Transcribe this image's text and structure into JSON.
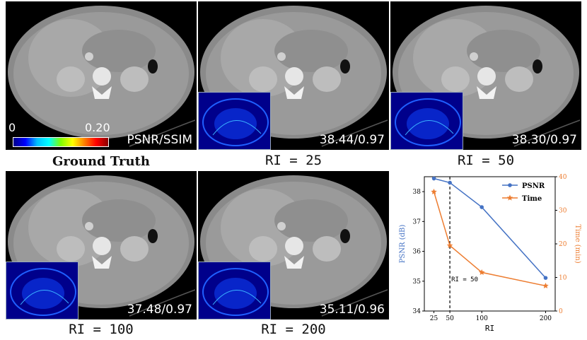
{
  "panels": [
    {
      "caption": "Ground Truth",
      "metric": "PSNR/SSIM",
      "inset": false,
      "colorbar": {
        "min": "0",
        "max": "0.20"
      }
    },
    {
      "caption": "RI = 25",
      "metric": "38.44/0.97",
      "inset": true
    },
    {
      "caption": "RI = 50",
      "metric": "38.30/0.97",
      "inset": true
    },
    {
      "caption": "RI = 100",
      "metric": "37.48/0.97",
      "inset": true
    },
    {
      "caption": "RI = 200",
      "metric": "35.11/0.96",
      "inset": true
    }
  ],
  "colors": {
    "psnr": "#4472c4",
    "time": "#ed7d31"
  },
  "chart_data": {
    "type": "line",
    "x": [
      25,
      50,
      100,
      200
    ],
    "xticks": [
      "25",
      "50",
      "100",
      "200"
    ],
    "xlabel": "RI",
    "series": [
      {
        "name": "PSNR",
        "axis": "left",
        "values": [
          38.44,
          38.3,
          37.48,
          35.11
        ],
        "marker": "circle"
      },
      {
        "name": "Time",
        "axis": "right",
        "values": [
          35.5,
          19.5,
          11.5,
          7.5
        ],
        "marker": "star"
      }
    ],
    "ylabel_left": "PSNR (dB)",
    "ylabel_right": "Time (min)",
    "ylim_left": [
      34,
      38.5
    ],
    "yticks_left": [
      "34",
      "35",
      "36",
      "37",
      "38"
    ],
    "ylim_right": [
      0,
      40
    ],
    "yticks_right": [
      "0",
      "10",
      "20",
      "30",
      "40"
    ],
    "annotation": {
      "x": 50,
      "label": "RI = 50"
    },
    "legend": "top-right"
  }
}
